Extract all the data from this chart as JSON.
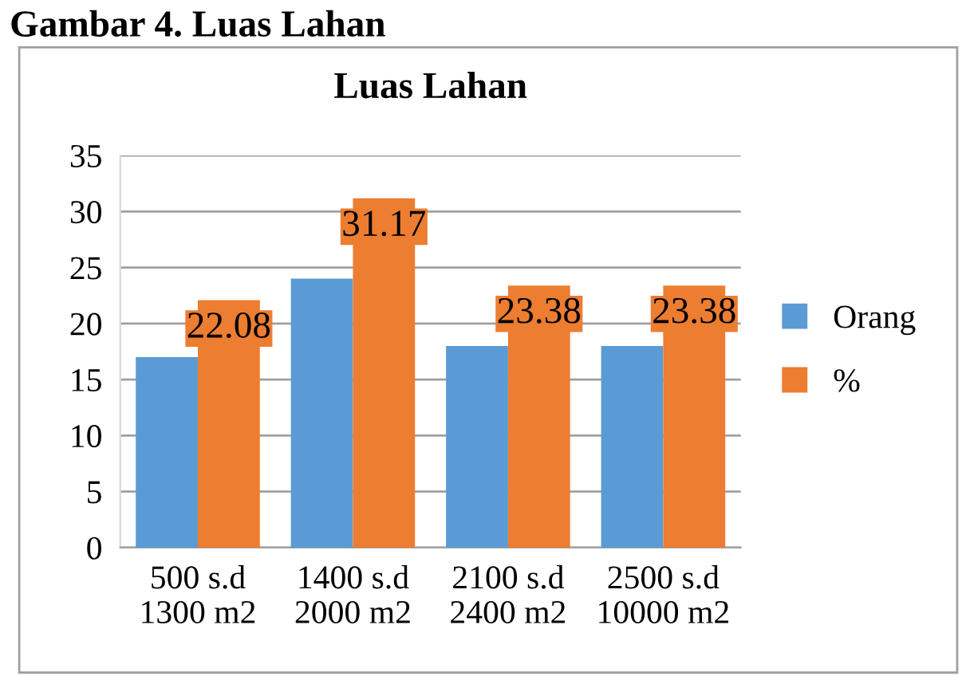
{
  "chart_data": {
    "type": "bar",
    "title": "Luas Lahan",
    "annotations": [
      "Gambar 4. Luas Lahan"
    ],
    "categories": [
      "500 s.d\n1300 m2",
      "1400 s.d\n2000 m2",
      "2100 s.d\n2400 m2",
      "2500 s.d\n10000 m2"
    ],
    "series": [
      {
        "name": "Orang",
        "color": "#5b9bd5",
        "values": [
          17,
          24,
          18,
          18
        ]
      },
      {
        "name": "%",
        "color": "#ed7d31",
        "values": [
          22.08,
          31.17,
          23.38,
          23.38
        ],
        "value_labels": [
          "22.08",
          "31.17",
          "23.38",
          "23.38"
        ]
      }
    ],
    "ylim": [
      0,
      35
    ],
    "yticks": [
      0,
      5,
      10,
      15,
      20,
      25,
      30,
      35
    ],
    "grid": "y",
    "legend": "right"
  }
}
